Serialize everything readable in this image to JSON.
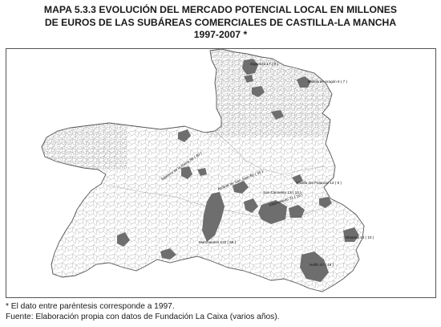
{
  "title": {
    "line1": "MAPA 5.3.3 EVOLUCIÓN DEL MERCADO POTENCIAL LOCAL EN MILLONES",
    "line2": "DE EUROS DE LAS SUBÁREAS COMERCIALES DE CASTILLA-LA MANCHA",
    "line3": "1997-2007 *"
  },
  "colors": {
    "highlight": "#6e6e6e",
    "border": "#9a9a9a",
    "land": "#ffffff"
  },
  "map_labels": [
    "Sigüenza 17 ( 9 )",
    "Molina de Aragón 6 ( 7 )",
    "Talavera de la Reina 58 ( 40 )",
    "Alcázar de San Juan 60 ( 36 )",
    "Motilla del Palancar 13 ( 9 )",
    "San Clemente 13 ( 10 )",
    "Villarrobledo 31 ( 16 )",
    "Manzanares 122 ( 68 )",
    "Almansa 14 ( 10 )",
    "Hellín 27 ( 18 )"
  ],
  "notes": {
    "line1": "* El dato entre paréntesis corresponde a 1997.",
    "line2": "Fuente: Elaboración propia con datos de Fundación La Caixa (varios años)."
  }
}
